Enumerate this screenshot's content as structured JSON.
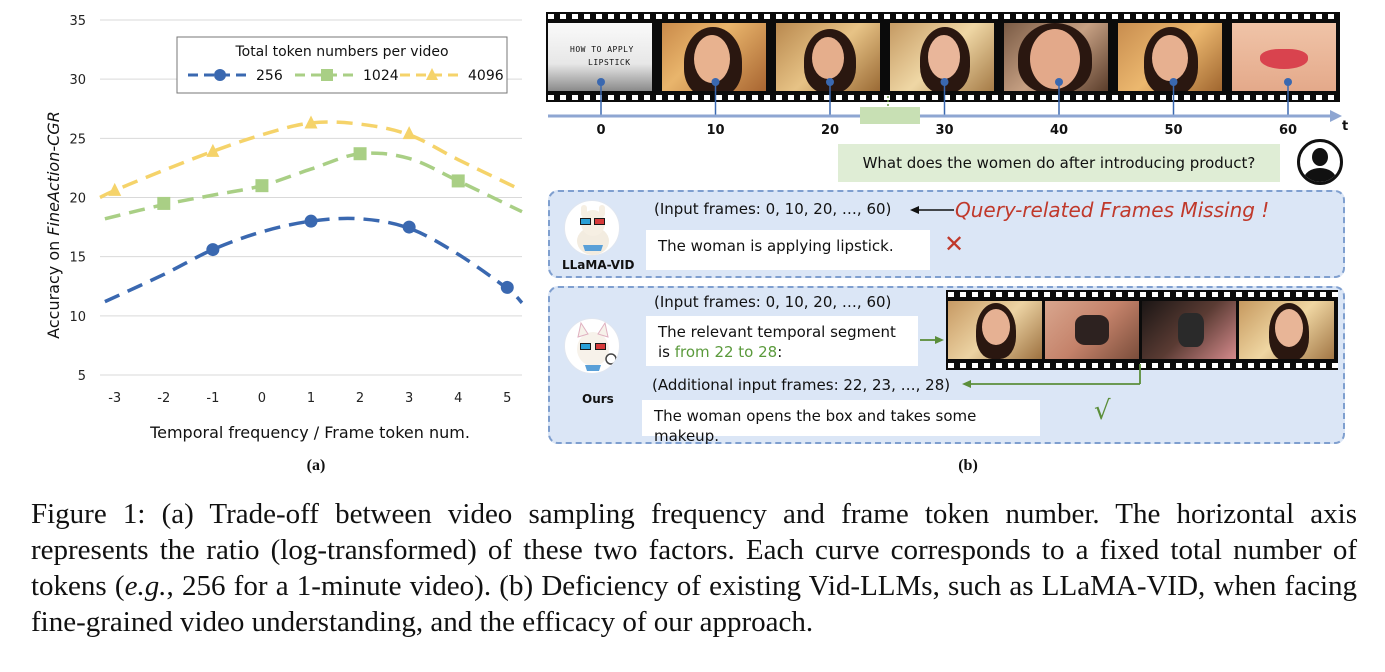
{
  "chart_data": {
    "type": "line",
    "ylabel_prefix": "Accuracy on ",
    "ylabel_dataset": "FineAction-CGR",
    "xlabel": "Temporal frequency / Frame token num.",
    "x_ticks": [
      "-3",
      "-2",
      "-1",
      "0",
      "1",
      "2",
      "3",
      "4",
      "5"
    ],
    "y_ticks": [
      "5",
      "10",
      "15",
      "20",
      "25",
      "30",
      "35"
    ],
    "ylim": [
      5,
      35
    ],
    "xlim": [
      -3.3,
      5.3
    ],
    "legend_title": "Total token numbers per video",
    "legend_position": "top-left",
    "grid": "horizontal",
    "series": [
      {
        "name": "256",
        "color": "#3a68b0",
        "marker": "circle",
        "points": [
          [
            -1,
            15.6
          ],
          [
            1,
            18.0
          ],
          [
            3,
            17.5
          ],
          [
            5,
            12.4
          ]
        ],
        "curve": [
          [
            -3.2,
            11.2
          ],
          [
            -2,
            13.5
          ],
          [
            -1,
            15.6
          ],
          [
            0,
            17.1
          ],
          [
            1,
            18.0
          ],
          [
            2,
            18.2
          ],
          [
            3,
            17.4
          ],
          [
            4,
            15.2
          ],
          [
            5,
            12.3
          ],
          [
            5.3,
            11.1
          ]
        ]
      },
      {
        "name": "1024",
        "color": "#a9cf85",
        "marker": "square",
        "points": [
          [
            -2,
            19.5
          ],
          [
            0,
            21.0
          ],
          [
            2,
            23.7
          ],
          [
            4,
            21.4
          ]
        ],
        "curve": [
          [
            -3.2,
            18.2
          ],
          [
            -2,
            19.4
          ],
          [
            -1,
            20.2
          ],
          [
            0,
            21.0
          ],
          [
            1,
            22.4
          ],
          [
            2,
            23.7
          ],
          [
            3,
            23.3
          ],
          [
            4,
            21.4
          ],
          [
            5.3,
            18.8
          ]
        ]
      },
      {
        "name": "4096",
        "color": "#f5d36a",
        "marker": "triangle",
        "points": [
          [
            -3,
            20.6
          ],
          [
            -1,
            23.9
          ],
          [
            1,
            26.3
          ],
          [
            3,
            25.4
          ]
        ],
        "curve": [
          [
            -3.3,
            20.0
          ],
          [
            -3,
            20.6
          ],
          [
            -2,
            22.3
          ],
          [
            -1,
            23.9
          ],
          [
            0,
            25.3
          ],
          [
            1,
            26.3
          ],
          [
            2,
            26.2
          ],
          [
            3,
            25.3
          ],
          [
            4,
            23.2
          ],
          [
            5.2,
            20.8
          ]
        ]
      }
    ],
    "panel_label": "(a)"
  },
  "panel_b": {
    "title_frame_line1": "HOW TO APPLY",
    "title_frame_line2": "LIPSTICK",
    "timeline_ticks": [
      "0",
      "10",
      "20",
      "30",
      "40",
      "50",
      "60"
    ],
    "time_axis_label": "t",
    "question": "What does the women do after introducing product?",
    "llama": {
      "name": "LLaMA-VID",
      "input": "(Input frames: 0, 10, 20, …, 60)",
      "answer": "The woman is applying lipstick.",
      "missing": "Query-related Frames Missing !",
      "cross": "✕"
    },
    "ours": {
      "name": "Ours",
      "input": "(Input frames: 0, 10, 20, …, 60)",
      "segment_line1": "The relevant temporal segment",
      "segment_line2_prefix": "is ",
      "segment_range": "from 22 to 28",
      "segment_line2_suffix": ":",
      "additional": "(Additional input frames: 22, 23, …, 28)",
      "answer": "The woman opens the box and takes some makeup.",
      "check": "√"
    },
    "panel_label": "(b)"
  },
  "caption": {
    "text": "Figure 1: (a) Trade-off between video sampling frequency and frame token number. The horizontal axis represents the ratio (log-transformed) of these two factors. Each curve corresponds to a fixed total number of tokens (",
    "eg": "e.g.",
    "text2": ", 256 for a 1-minute video). (b) Deficiency of existing Vid-LLMs, such as LLaMA-VID, when facing fine-grained video understanding, and the efficacy of our approach."
  }
}
